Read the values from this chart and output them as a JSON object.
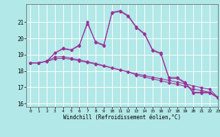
{
  "xlabel": "Windchill (Refroidissement éolien,°C)",
  "x": [
    0,
    1,
    2,
    3,
    4,
    5,
    6,
    7,
    8,
    9,
    10,
    11,
    12,
    13,
    14,
    15,
    16,
    17,
    18,
    19,
    20,
    21,
    22,
    23
  ],
  "line1": [
    18.5,
    18.5,
    18.6,
    19.1,
    19.4,
    19.3,
    19.6,
    20.9,
    19.8,
    19.6,
    21.6,
    21.7,
    21.4,
    20.7,
    20.3,
    19.3,
    19.1,
    17.6,
    17.6,
    17.3,
    16.7,
    16.7,
    16.7,
    16.4
  ],
  "line2": [
    18.5,
    18.5,
    18.6,
    19.1,
    19.35,
    19.28,
    19.55,
    21.0,
    19.75,
    19.55,
    21.55,
    21.65,
    21.35,
    20.65,
    20.25,
    19.25,
    19.05,
    17.55,
    17.55,
    17.25,
    16.65,
    16.65,
    16.65,
    16.35
  ],
  "line3": [
    18.5,
    18.5,
    18.58,
    18.75,
    18.78,
    18.72,
    18.62,
    18.52,
    18.42,
    18.3,
    18.18,
    18.06,
    17.94,
    17.82,
    17.72,
    17.62,
    17.52,
    17.42,
    17.32,
    17.22,
    17.08,
    16.98,
    16.88,
    16.38
  ],
  "line4": [
    18.5,
    18.5,
    18.6,
    18.85,
    18.88,
    18.78,
    18.68,
    18.57,
    18.46,
    18.33,
    18.2,
    18.07,
    17.95,
    17.75,
    17.63,
    17.52,
    17.4,
    17.29,
    17.18,
    17.08,
    16.9,
    16.8,
    16.7,
    16.38
  ],
  "color": "#993399",
  "bg_color": "#b3e8e8",
  "grid_color": "#ffffff",
  "ylim": [
    15.8,
    22.1
  ],
  "yticks": [
    16,
    17,
    18,
    19,
    20,
    21
  ],
  "xlim": [
    -0.5,
    23
  ],
  "xticks": [
    0,
    1,
    2,
    3,
    4,
    5,
    6,
    7,
    8,
    9,
    10,
    11,
    12,
    13,
    14,
    15,
    16,
    17,
    18,
    19,
    20,
    21,
    22,
    23
  ]
}
